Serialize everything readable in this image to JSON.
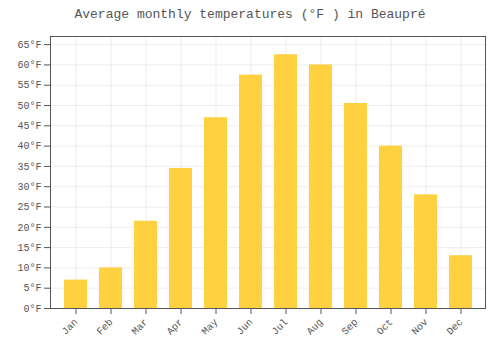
{
  "chart_data": {
    "type": "bar",
    "title": "Average monthly temperatures (°F ) in Beaupré",
    "categories": [
      "Jan",
      "Feb",
      "Mar",
      "Apr",
      "May",
      "Jun",
      "Jul",
      "Aug",
      "Sep",
      "Oct",
      "Nov",
      "Dec"
    ],
    "values": [
      7,
      10,
      21.5,
      34.5,
      47,
      57.5,
      62.5,
      60,
      50.5,
      40,
      28,
      13
    ],
    "color": "#FFD040",
    "ylim": [
      0,
      67
    ],
    "yticks": [
      {
        "value": 0,
        "label": "0°F"
      },
      {
        "value": 5,
        "label": "5°F"
      },
      {
        "value": 10,
        "label": "10°F"
      },
      {
        "value": 15,
        "label": "15°F"
      },
      {
        "value": 20,
        "label": "20°F"
      },
      {
        "value": 25,
        "label": "25°F"
      },
      {
        "value": 30,
        "label": "30°F"
      },
      {
        "value": 35,
        "label": "35°F"
      },
      {
        "value": 40,
        "label": "40°F"
      },
      {
        "value": 45,
        "label": "45°F"
      },
      {
        "value": 50,
        "label": "50°F"
      },
      {
        "value": 55,
        "label": "55°F"
      },
      {
        "value": 60,
        "label": "60°F"
      },
      {
        "value": 65,
        "label": "65°F"
      }
    ],
    "grid": true
  }
}
